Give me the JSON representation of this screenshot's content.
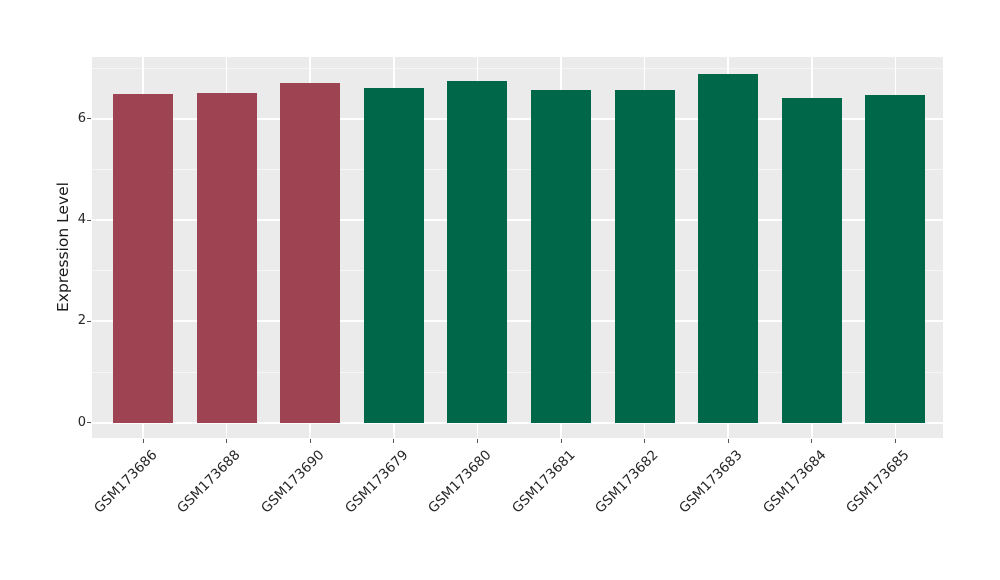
{
  "chart_data": {
    "type": "bar",
    "title": "",
    "xlabel": "",
    "ylabel": "Expression Level",
    "categories": [
      "GSM173686",
      "GSM173688",
      "GSM173690",
      "GSM173679",
      "GSM173680",
      "GSM173681",
      "GSM173682",
      "GSM173683",
      "GSM173684",
      "GSM173685"
    ],
    "values": [
      6.48,
      6.51,
      6.7,
      6.61,
      6.75,
      6.57,
      6.56,
      6.88,
      6.42,
      6.47
    ],
    "bar_colors": [
      "#9e4352",
      "#9e4352",
      "#9e4352",
      "#006748",
      "#006748",
      "#006748",
      "#006748",
      "#006748",
      "#006748",
      "#006748"
    ],
    "groups": [
      {
        "name": "group-red",
        "color": "#9e4352",
        "samples": [
          "GSM173686",
          "GSM173688",
          "GSM173690"
        ]
      },
      {
        "name": "group-green",
        "color": "#006748",
        "samples": [
          "GSM173679",
          "GSM173680",
          "GSM173681",
          "GSM173682",
          "GSM173683",
          "GSM173684",
          "GSM173685"
        ]
      }
    ],
    "yticks": [
      0,
      2,
      4,
      6
    ],
    "yticks_minor": [
      1,
      3,
      5,
      7
    ],
    "ylim": [
      -0.3,
      7.22
    ],
    "grid": true,
    "legend": false,
    "x_tick_rotation_deg": 45
  },
  "style": {
    "figure_bg": "#ffffff",
    "panel_bg": "#ebebeb",
    "grid_major_color": "#ffffff",
    "grid_minor_color": "#f6f6f6",
    "tick_mark_color": "#555555",
    "tick_label_color": "#262626",
    "axis_label_color": "#1a1a1a"
  }
}
